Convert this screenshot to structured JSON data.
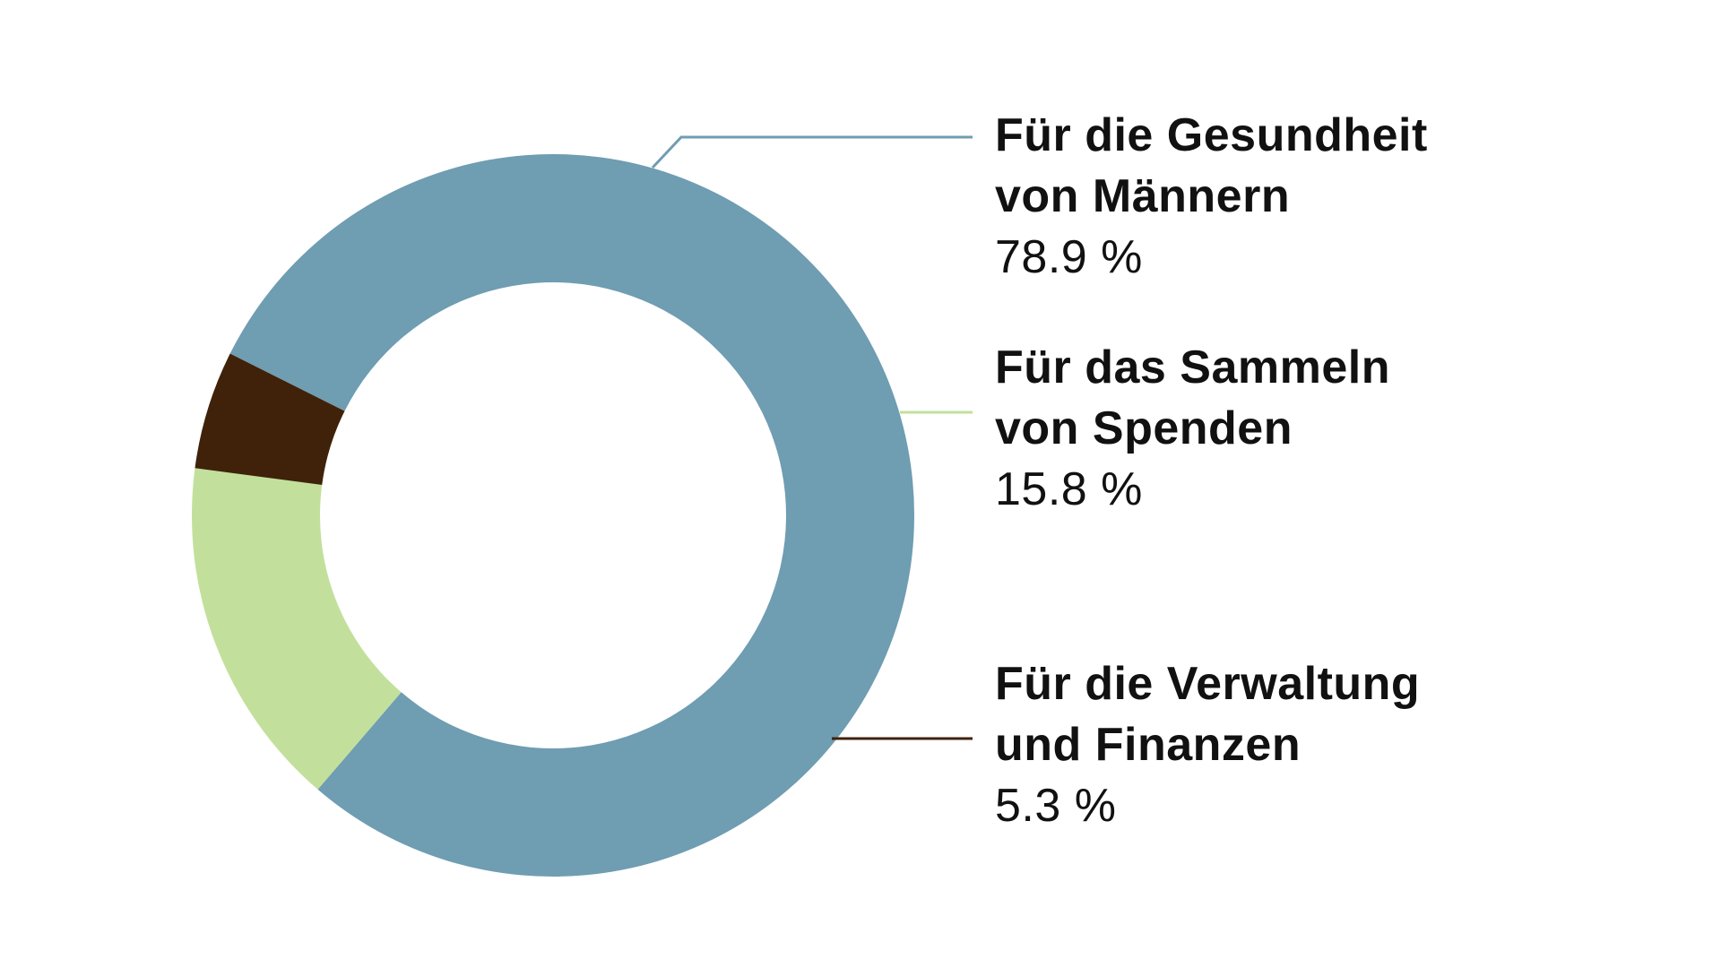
{
  "chart_data": {
    "type": "pie",
    "donut": true,
    "categories": [
      "Für die Gesundheit von Männern",
      "Für das Sammeln von Spenden",
      "Für die Verwaltung und Finanzen"
    ],
    "values": [
      78.9,
      15.8,
      5.3
    ],
    "value_labels": [
      "78.9 %",
      "15.8 %",
      "5.3 %"
    ],
    "legend_lines": [
      [
        "Für die Gesundheit",
        "von Männern"
      ],
      [
        "Für das Sammeln",
        "von Spenden"
      ],
      [
        "Für die Verwaltung",
        "und Finanzen"
      ]
    ],
    "colors": [
      "#6f9db2",
      "#c2e09b",
      "#3f2209"
    ],
    "legend_placement": "right",
    "grid": false
  }
}
